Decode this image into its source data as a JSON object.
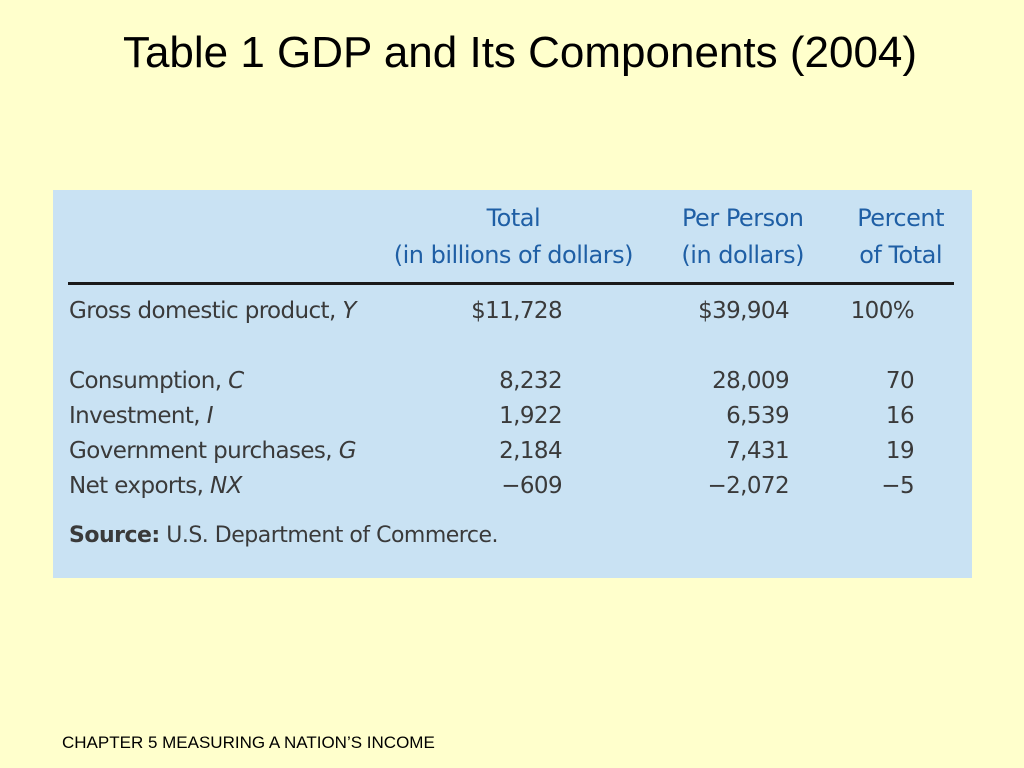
{
  "slide": {
    "title": "Table 1 GDP and Its Components (2004)",
    "footer": "CHAPTER 5 MEASURING A NATION’S INCOME"
  },
  "table": {
    "columns": [
      {
        "line1": "Total",
        "line2": "(in billions of dollars)"
      },
      {
        "line1": "Per Person",
        "line2": "(in dollars)"
      },
      {
        "line1": "Percent",
        "line2": "of Total"
      }
    ],
    "rows": [
      {
        "label": "Gross domestic product, ",
        "var": "Y",
        "total": "$11,728",
        "per_person": "$39,904",
        "percent": "100%"
      },
      {
        "label": "Consumption, ",
        "var": "C",
        "total": "8,232",
        "per_person": "28,009",
        "percent": "70"
      },
      {
        "label": "Investment, ",
        "var": "I",
        "total": "1,922",
        "per_person": "6,539",
        "percent": "16"
      },
      {
        "label": "Government purchases, ",
        "var": "G",
        "total": "2,184",
        "per_person": "7,431",
        "percent": "19"
      },
      {
        "label": "Net exports, ",
        "var": "NX",
        "total": "−609",
        "per_person": "−2,072",
        "percent": "−5"
      }
    ],
    "source_label": "Source:",
    "source_text": " U.S. Department of Commerce."
  },
  "colors": {
    "background": "#ffffcc",
    "panel": "#c9e2f3",
    "header_text": "#1f5fa5",
    "body_text": "#3a3a3a"
  }
}
